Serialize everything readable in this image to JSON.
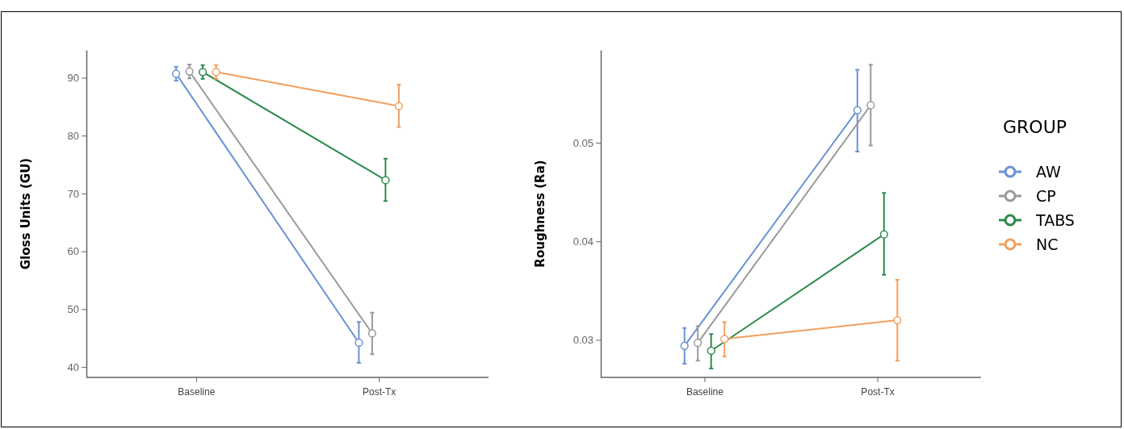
{
  "chart_data": [
    {
      "type": "line",
      "ylabel": "Gloss Units (GU)",
      "categories": [
        "Baseline",
        "Post-Tx"
      ],
      "ylim": [
        38.2,
        94.8
      ],
      "yticks": [
        40,
        50,
        60,
        70,
        80,
        90
      ],
      "marker": "circle",
      "legend": false,
      "grid": false,
      "series": [
        {
          "color": "#6a92d4",
          "values": [
            90.7,
            44.2
          ],
          "errors": [
            [
              89.5,
              91.9
            ],
            [
              40.7,
              47.8
            ]
          ]
        },
        {
          "color": "#9a9a9a",
          "values": [
            91.1,
            45.8
          ],
          "errors": [
            [
              89.9,
              92.3
            ],
            [
              42.2,
              49.4
            ]
          ]
        },
        {
          "color": "#2e8b4e",
          "values": [
            91.0,
            72.3
          ],
          "errors": [
            [
              89.8,
              92.2
            ],
            [
              68.7,
              76.0
            ]
          ]
        },
        {
          "color": "#f0a060",
          "values": [
            91.0,
            85.1
          ],
          "errors": [
            [
              89.8,
              92.2
            ],
            [
              81.5,
              88.8
            ]
          ]
        }
      ]
    },
    {
      "type": "line",
      "ylabel": "Roughness (Ra)",
      "categories": [
        "Baseline",
        "Post-Tx"
      ],
      "ylim": [
        0.0262,
        0.0594
      ],
      "yticks": [
        0.03,
        0.04,
        0.05
      ],
      "marker": "circle",
      "legend": "right",
      "legend_title": "GROUP",
      "grid": false,
      "series": [
        {
          "name": "AW",
          "color": "#6a92d4",
          "values": [
            0.0294,
            0.0533
          ],
          "errors": [
            [
              0.0276,
              0.0312
            ],
            [
              0.0491,
              0.0574
            ]
          ]
        },
        {
          "name": "CP",
          "color": "#9a9a9a",
          "values": [
            0.0297,
            0.0538
          ],
          "errors": [
            [
              0.0279,
              0.0314
            ],
            [
              0.0497,
              0.0579
            ]
          ]
        },
        {
          "name": "TABS",
          "color": "#2e8b4e",
          "values": [
            0.0289,
            0.0407
          ],
          "errors": [
            [
              0.0271,
              0.0306
            ],
            [
              0.0366,
              0.0449
            ]
          ]
        },
        {
          "name": "NC",
          "color": "#f0a060",
          "values": [
            0.0301,
            0.032
          ],
          "errors": [
            [
              0.0283,
              0.0318
            ],
            [
              0.0279,
              0.0361
            ]
          ]
        }
      ]
    }
  ]
}
